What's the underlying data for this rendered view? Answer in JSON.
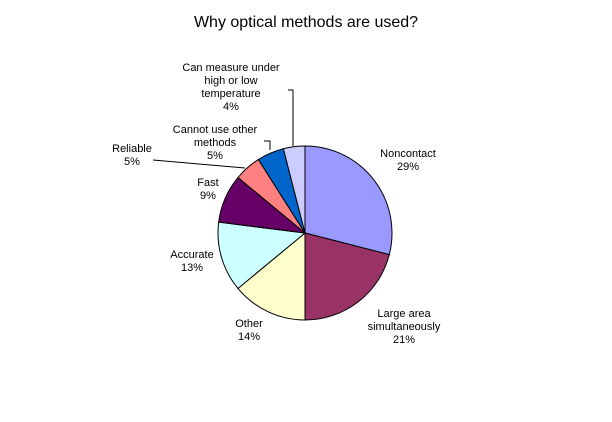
{
  "chart_data": {
    "type": "pie",
    "title": "Why optical methods are used?",
    "slices": [
      {
        "label": [
          "Noncontact"
        ],
        "value": 29,
        "value_label": "29%",
        "color": "#9999ff"
      },
      {
        "label": [
          "Large area",
          "simultaneously"
        ],
        "value": 21,
        "value_label": "21%",
        "color": "#993366"
      },
      {
        "label": [
          "Other"
        ],
        "value": 14,
        "value_label": "14%",
        "color": "#ffffcc"
      },
      {
        "label": [
          "Accurate"
        ],
        "value": 13,
        "value_label": "13%",
        "color": "#ccffff"
      },
      {
        "label": [
          "Fast"
        ],
        "value": 9,
        "value_label": "9%",
        "color": "#660066"
      },
      {
        "label": [
          "Reliable"
        ],
        "value": 5,
        "value_label": "5%",
        "color": "#ff8080"
      },
      {
        "label": [
          "Cannot use other",
          "methods"
        ],
        "value": 5,
        "value_label": "5%",
        "color": "#0066cc"
      },
      {
        "label": [
          "Can measure under",
          "high or low",
          "temperature"
        ],
        "value": 4,
        "value_label": "4%",
        "color": "#ccccff"
      }
    ]
  }
}
